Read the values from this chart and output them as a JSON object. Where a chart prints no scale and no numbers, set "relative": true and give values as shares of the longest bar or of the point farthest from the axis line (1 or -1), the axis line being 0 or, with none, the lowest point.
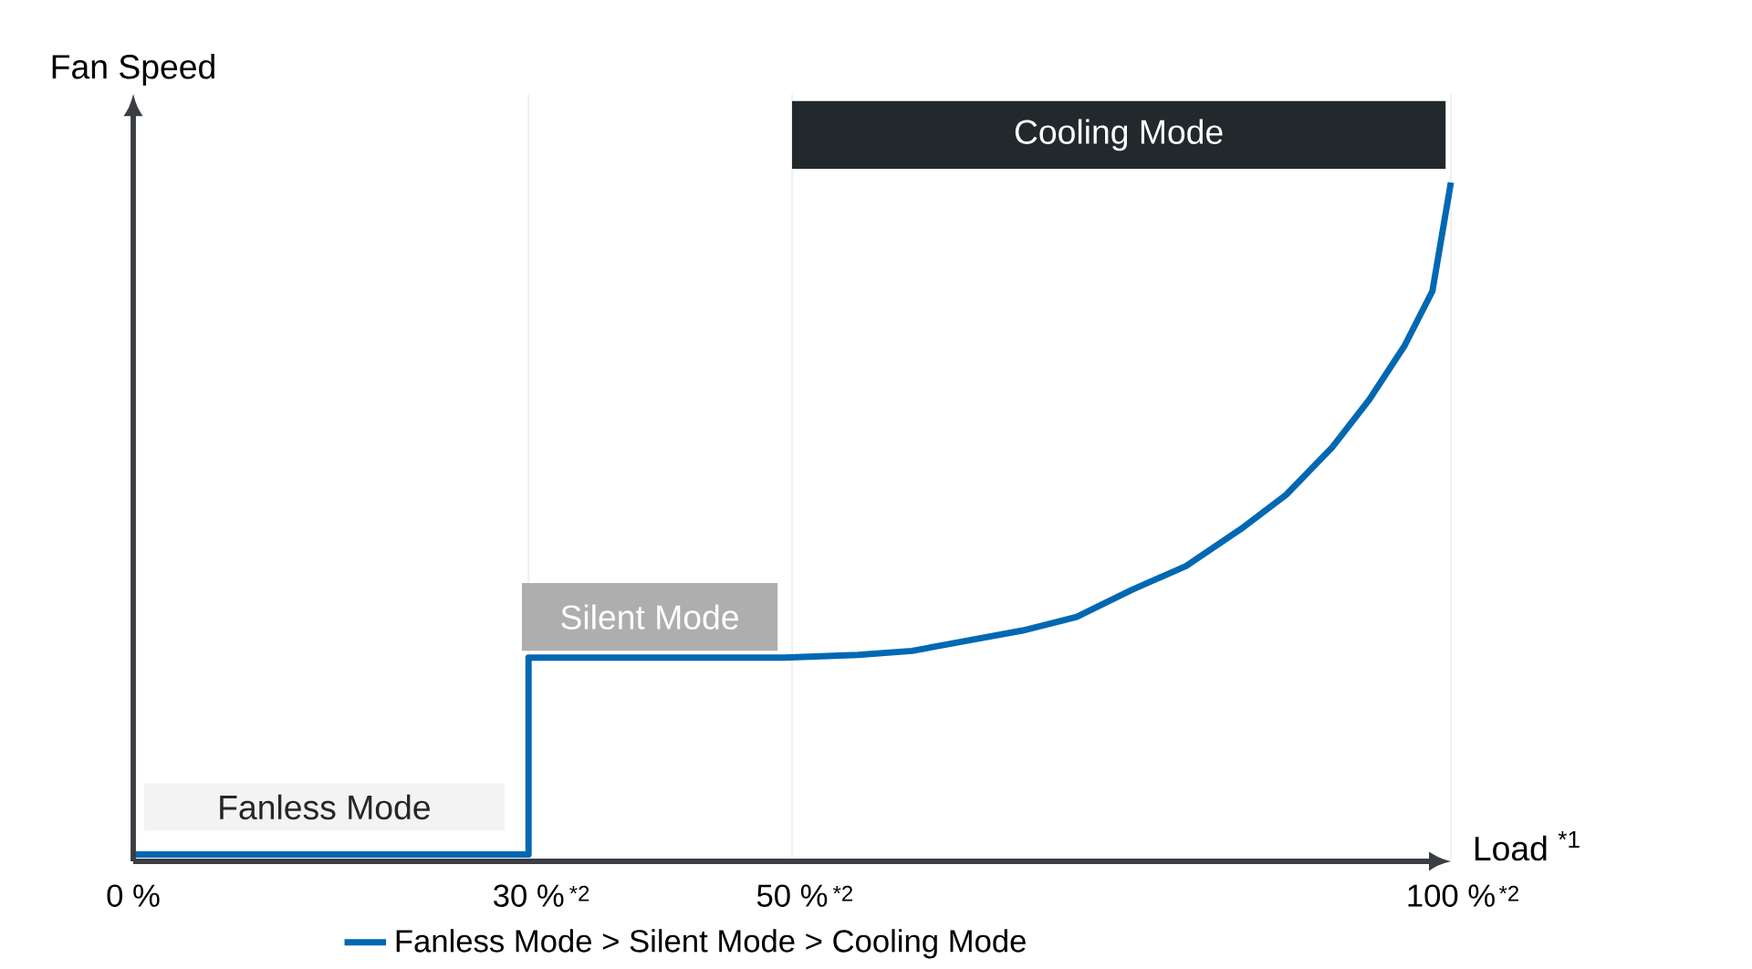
{
  "chart_data": {
    "type": "line",
    "relative": true,
    "xlabel": "Load $^{*1}$",
    "ylabel": "Fan Speed",
    "x": [
      0,
      30,
      30,
      49.4,
      55,
      59.1,
      63.3,
      67.5,
      71.6,
      75.8,
      79.9,
      84.1,
      87.5,
      91,
      93.8,
      96.5,
      98.6,
      99.3,
      100
    ],
    "xlim": [
      0,
      100
    ],
    "xticks": [
      {
        "value": 0,
        "label": "0 %"
      },
      {
        "value": 30,
        "label": "30 %"
      },
      {
        "value": 50,
        "label": "50 %"
      },
      {
        "value": 100,
        "label": "100 %"
      }
    ],
    "series": [
      {
        "name": "Fanless Mode > Silent Mode > Cooling Mode",
        "color": "#0068b3",
        "values": [
          0.01,
          0.01,
          0.3,
          0.3,
          0.304,
          0.31,
          0.325,
          0.34,
          0.36,
          0.4,
          0.435,
          0.49,
          0.54,
          0.61,
          0.68,
          0.76,
          0.84,
          0.92,
          1
        ]
      }
    ],
    "annotations": [
      "Fanless Mode",
      "Silent Mode",
      "Cooling Mode",
      "*2",
      "*2",
      "*2"
    ],
    "grid": "x",
    "tick_labels": "x",
    "legend": "bottom",
    "marker": "none",
    "line_style": "solid"
  }
}
